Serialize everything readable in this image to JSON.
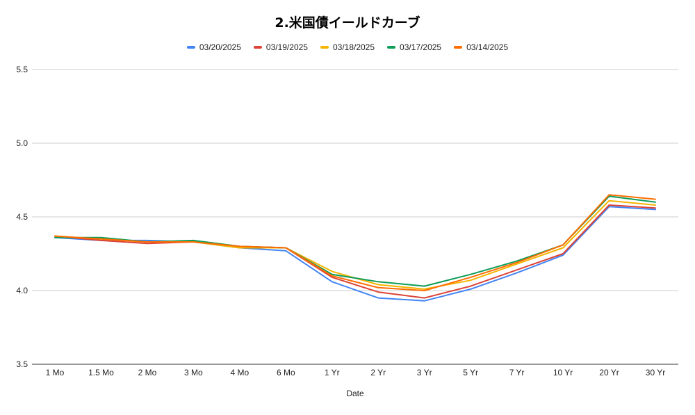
{
  "chart_data": {
    "type": "line",
    "title": "2.米国債イールドカーブ",
    "xlabel": "Date",
    "ylabel": "",
    "ylim": [
      3.5,
      5.5
    ],
    "yticks": [
      "3.5",
      "4.0",
      "4.5",
      "5.0",
      "5.5"
    ],
    "categories": [
      "1 Mo",
      "1.5 Mo",
      "2 Mo",
      "3 Mo",
      "4 Mo",
      "6 Mo",
      "1 Yr",
      "2 Yr",
      "3 Yr",
      "5 Yr",
      "7 Yr",
      "10 Yr",
      "20 Yr",
      "30 Yr"
    ],
    "legend_position": "top-center",
    "grid": true,
    "series": [
      {
        "name": "03/20/2025",
        "color": "#4285F4",
        "values": [
          4.36,
          4.34,
          4.34,
          4.33,
          4.29,
          4.27,
          4.06,
          3.95,
          3.93,
          4.01,
          4.12,
          4.24,
          4.57,
          4.55
        ]
      },
      {
        "name": "03/19/2025",
        "color": "#DB4437",
        "values": [
          4.37,
          4.34,
          4.32,
          4.33,
          4.3,
          4.29,
          4.09,
          3.99,
          3.95,
          4.03,
          4.14,
          4.25,
          4.58,
          4.56
        ]
      },
      {
        "name": "03/18/2025",
        "color": "#F4B400",
        "values": [
          4.37,
          4.35,
          4.33,
          4.33,
          4.29,
          4.29,
          4.13,
          4.04,
          4.01,
          4.07,
          4.18,
          4.29,
          4.61,
          4.58
        ]
      },
      {
        "name": "03/17/2025",
        "color": "#0F9D58",
        "values": [
          4.36,
          4.36,
          4.33,
          4.34,
          4.3,
          4.29,
          4.11,
          4.06,
          4.03,
          4.11,
          4.2,
          4.31,
          4.64,
          4.6
        ]
      },
      {
        "name": "03/14/2025",
        "color": "#FF6D01",
        "values": [
          4.37,
          4.35,
          4.33,
          4.33,
          4.3,
          4.29,
          4.1,
          4.02,
          4.0,
          4.09,
          4.19,
          4.31,
          4.65,
          4.62
        ]
      }
    ]
  }
}
